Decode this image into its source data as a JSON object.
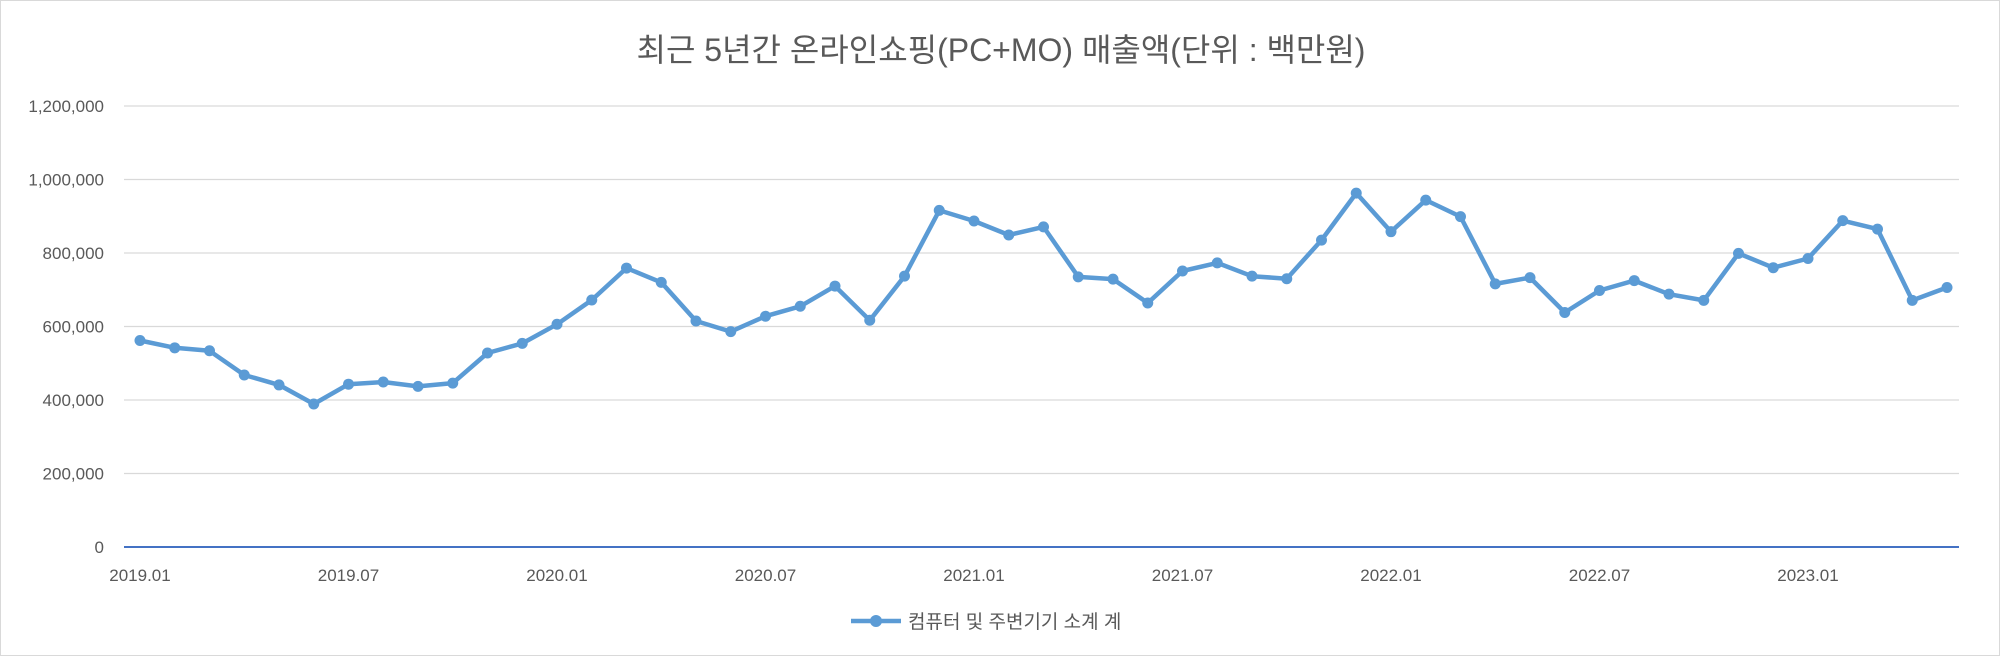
{
  "chart_data": {
    "type": "line",
    "title": "최근 5년간 온라인쇼핑(PC+MO) 매출액(단위 : 백만원)",
    "xlabel": "",
    "ylabel": "",
    "ylim": [
      0,
      1200000
    ],
    "yticks": [
      0,
      200000,
      400000,
      600000,
      800000,
      1000000,
      1200000
    ],
    "ytick_labels": [
      "0",
      "200,000",
      "400,000",
      "600,000",
      "800,000",
      "1,000,000",
      "1,200,000"
    ],
    "x": [
      "2019.01",
      "2019.02",
      "2019.03",
      "2019.04",
      "2019.05",
      "2019.06",
      "2019.07",
      "2019.08",
      "2019.09",
      "2019.10",
      "2019.11",
      "2019.12",
      "2020.01",
      "2020.02",
      "2020.03",
      "2020.04",
      "2020.05",
      "2020.06",
      "2020.07",
      "2020.08",
      "2020.09",
      "2020.10",
      "2020.11",
      "2020.12",
      "2021.01",
      "2021.02",
      "2021.03",
      "2021.04",
      "2021.05",
      "2021.06",
      "2021.07",
      "2021.08",
      "2021.09",
      "2021.10",
      "2021.11",
      "2021.12",
      "2022.01",
      "2022.02",
      "2022.03",
      "2022.04",
      "2022.05",
      "2022.06",
      "2022.07",
      "2022.08",
      "2022.09",
      "2022.10",
      "2022.11",
      "2022.12",
      "2023.01",
      "2023.02",
      "2023.03",
      "2023.04",
      "2023.05"
    ],
    "xtick_labels": [
      "2019.01",
      "2019.07",
      "2020.01",
      "2020.07",
      "2021.01",
      "2021.07",
      "2022.01",
      "2022.07",
      "2023.01"
    ],
    "series": [
      {
        "name": "컴퓨터 및 주변기기 소계 계",
        "color": "#5b9bd5",
        "values": [
          562000,
          542000,
          534000,
          468000,
          441000,
          389000,
          443000,
          449000,
          437000,
          446000,
          528000,
          554000,
          606000,
          672000,
          759000,
          720000,
          615000,
          586000,
          628000,
          655000,
          710000,
          617000,
          737000,
          916000,
          887000,
          849000,
          871000,
          735000,
          729000,
          664000,
          751000,
          773000,
          737000,
          730000,
          835000,
          963000,
          858000,
          944000,
          899000,
          716000,
          733000,
          638000,
          698000,
          725000,
          688000,
          671000,
          799000,
          760000,
          785000,
          888000,
          865000,
          671000,
          706000
        ]
      }
    ],
    "grid": true,
    "legend_position": "bottom-center"
  }
}
